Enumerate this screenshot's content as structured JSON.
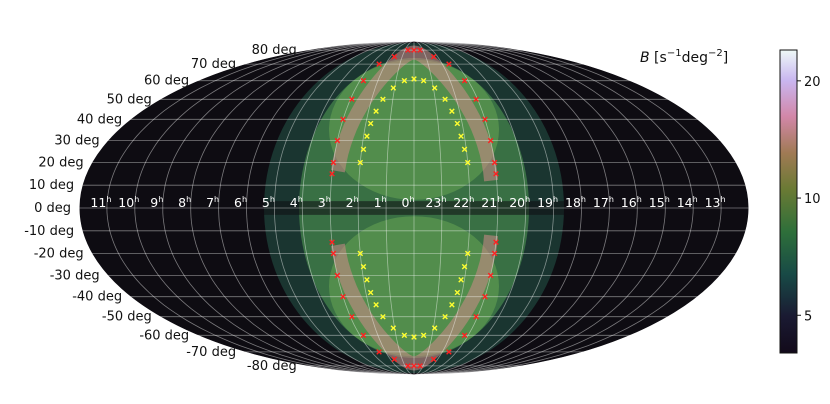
{
  "chart_data": {
    "type": "heatmap",
    "projection": "mollweide",
    "colorbar": {
      "label_symbol": "B",
      "label_units_prefix": " [s",
      "label_units_exp1": "−1",
      "label_units_mid": "deg",
      "label_units_exp2": "−2",
      "label_units_suffix": "]",
      "colormap": "cubehelix",
      "range": [
        4,
        24
      ],
      "ticks": [
        5,
        10,
        20
      ],
      "scale": "log"
    },
    "dec_labels": [
      "80 deg",
      "70 deg",
      "60 deg",
      "50 deg",
      "40 deg",
      "30 deg",
      "20 deg",
      "10 deg",
      "0 deg",
      "-10 deg",
      "-20 deg",
      "-30 deg",
      "-40 deg",
      "-50 deg",
      "-60 deg",
      "-70 deg",
      "-80 deg"
    ],
    "dec_values": [
      80,
      70,
      60,
      50,
      40,
      30,
      20,
      10,
      0,
      -10,
      -20,
      -30,
      -40,
      -50,
      -60,
      -70,
      -80
    ],
    "ra_labels": [
      {
        "h": "11",
        "s": "h"
      },
      {
        "h": "10",
        "s": "h"
      },
      {
        "h": "9",
        "s": "h"
      },
      {
        "h": "8",
        "s": "h"
      },
      {
        "h": "7",
        "s": "h"
      },
      {
        "h": "6",
        "s": "h"
      },
      {
        "h": "5",
        "s": "h"
      },
      {
        "h": "4",
        "s": "h"
      },
      {
        "h": "3",
        "s": "h"
      },
      {
        "h": "2",
        "s": "h"
      },
      {
        "h": "1",
        "s": "h"
      },
      {
        "h": "0",
        "s": "h"
      },
      {
        "h": "23",
        "s": "h"
      },
      {
        "h": "22",
        "s": "h"
      },
      {
        "h": "21",
        "s": "h"
      },
      {
        "h": "20",
        "s": "h"
      },
      {
        "h": "19",
        "s": "h"
      },
      {
        "h": "18",
        "s": "h"
      },
      {
        "h": "17",
        "s": "h"
      },
      {
        "h": "16",
        "s": "h"
      },
      {
        "h": "15",
        "s": "h"
      },
      {
        "h": "14",
        "s": "h"
      },
      {
        "h": "13",
        "s": "h"
      }
    ],
    "ra_values_deg": [
      165,
      150,
      135,
      120,
      105,
      90,
      75,
      60,
      45,
      30,
      15,
      0,
      -15,
      -30,
      -45,
      -60,
      -75,
      -90,
      -105,
      -120,
      -135,
      -150,
      -165
    ],
    "grid": true,
    "graticule_spacing_deg": {
      "ra": 15,
      "dec": 10
    },
    "series": [
      {
        "marker": "x",
        "color": "#ff2020",
        "points_lonlat_deg": [
          [
            -25,
            75
          ],
          [
            -37,
            70
          ],
          [
            -42,
            60
          ],
          [
            -44,
            50
          ],
          [
            -45,
            40
          ],
          [
            -45,
            30
          ],
          [
            -45,
            20
          ],
          [
            -45,
            15
          ],
          [
            25,
            75
          ],
          [
            37,
            70
          ],
          [
            42,
            60
          ],
          [
            44,
            50
          ],
          [
            45,
            40
          ],
          [
            45,
            30
          ],
          [
            45,
            20
          ],
          [
            45,
            15
          ],
          [
            -10,
            80
          ],
          [
            10,
            80
          ],
          [
            0,
            80
          ],
          [
            -25,
            -75
          ],
          [
            -37,
            -70
          ],
          [
            -42,
            -60
          ],
          [
            -44,
            -50
          ],
          [
            -45,
            -40
          ],
          [
            -45,
            -30
          ],
          [
            -45,
            -20
          ],
          [
            -45,
            -15
          ],
          [
            25,
            -75
          ],
          [
            37,
            -70
          ],
          [
            42,
            -60
          ],
          [
            44,
            -50
          ],
          [
            45,
            -40
          ],
          [
            45,
            -30
          ],
          [
            45,
            -20
          ],
          [
            45,
            -15
          ],
          [
            -10,
            -80
          ],
          [
            10,
            -80
          ],
          [
            0,
            -80
          ]
        ]
      },
      {
        "marker": "x",
        "color": "#ffff30",
        "points_lonlat_deg": [
          [
            -8,
            60
          ],
          [
            8,
            60
          ],
          [
            0,
            61
          ],
          [
            -16,
            56
          ],
          [
            16,
            56
          ],
          [
            -22,
            50
          ],
          [
            22,
            50
          ],
          [
            -25,
            44
          ],
          [
            25,
            44
          ],
          [
            -27,
            38
          ],
          [
            27,
            38
          ],
          [
            -28,
            32
          ],
          [
            28,
            32
          ],
          [
            -29,
            26
          ],
          [
            29,
            26
          ],
          [
            -30,
            20
          ],
          [
            30,
            20
          ],
          [
            -8,
            -60
          ],
          [
            8,
            -60
          ],
          [
            0,
            -61
          ],
          [
            -16,
            -56
          ],
          [
            16,
            -56
          ],
          [
            -22,
            -50
          ],
          [
            22,
            -50
          ],
          [
            -25,
            -44
          ],
          [
            25,
            -44
          ],
          [
            -27,
            -38
          ],
          [
            27,
            -38
          ],
          [
            -28,
            -32
          ],
          [
            28,
            -32
          ],
          [
            -29,
            -26
          ],
          [
            29,
            -26
          ],
          [
            -30,
            -20
          ],
          [
            30,
            -20
          ]
        ]
      }
    ]
  }
}
